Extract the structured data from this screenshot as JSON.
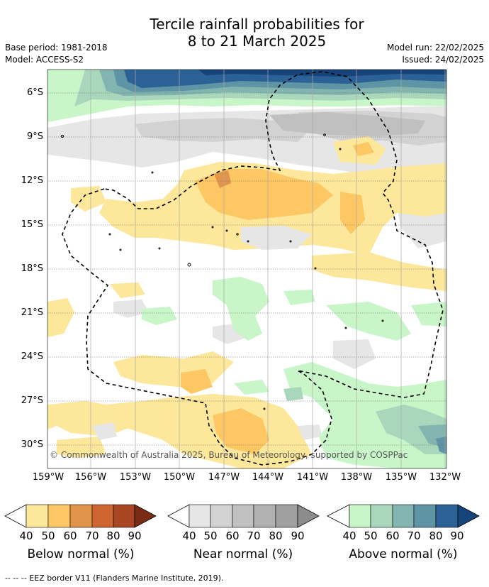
{
  "title_line1": "Tercile rainfall probabilities for",
  "title_line2": "8 to 21 March 2025",
  "base_period": "Base period: 1981-2018",
  "model": "Model: ACCESS-S2",
  "model_run": "Model run: 22/02/2025",
  "issued": "Issued: 24/02/2025",
  "copyright": "© Commonwealth of Australia 2025, Bureau of Meteorology, supported by COSPPac",
  "footnote": "--  --  -- EEZ border V11 (Flanders Marine Institute, 2019).",
  "lat_labels": [
    "6°S",
    "9°S",
    "12°S",
    "15°S",
    "18°S",
    "21°S",
    "24°S",
    "27°S",
    "30°S"
  ],
  "lon_labels": [
    "159°W",
    "156°W",
    "153°W",
    "150°W",
    "147°W",
    "144°W",
    "141°W",
    "138°W",
    "135°W",
    "132°W"
  ],
  "colorbars": [
    {
      "title": "Below normal (%)",
      "ticks": [
        "40",
        "50",
        "60",
        "70",
        "80",
        "90"
      ],
      "colors": [
        "#fde79a",
        "#fdc763",
        "#e1954a",
        "#cf6532",
        "#a84624",
        "#7a2b16"
      ]
    },
    {
      "title": "Near normal (%)",
      "ticks": [
        "40",
        "50",
        "60",
        "70",
        "80",
        "90"
      ],
      "colors": [
        "#e6e6e6",
        "#d2d2d2",
        "#c0c0c0",
        "#b1b1b1",
        "#a0a0a0",
        "#8c8c8c"
      ]
    },
    {
      "title": "Above normal (%)",
      "ticks": [
        "40",
        "50",
        "60",
        "70",
        "80",
        "90"
      ],
      "colors": [
        "#c9f6c9",
        "#a9d7bc",
        "#82b5b0",
        "#5e94a4",
        "#2c6196",
        "#16437a"
      ]
    }
  ]
}
